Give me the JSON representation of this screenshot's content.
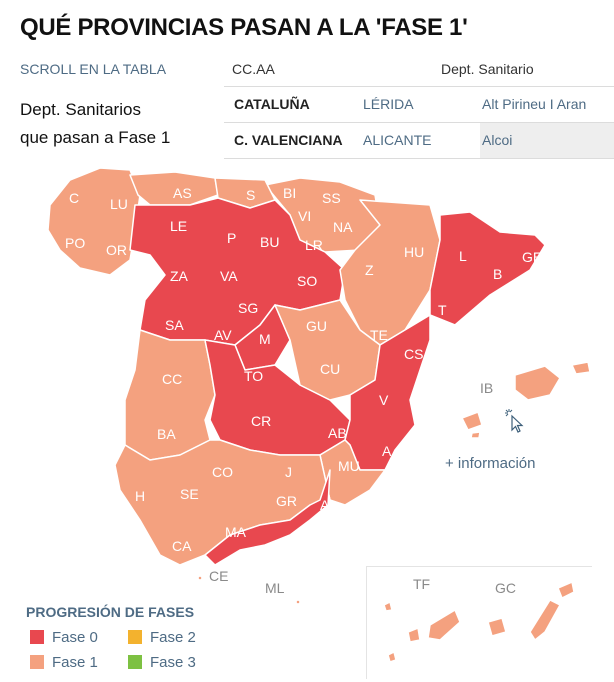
{
  "title": "QUÉ PROVINCIAS PASAN A LA 'FASE 1'",
  "scroll_label": "SCROLL EN LA TABLA",
  "table": {
    "headers": [
      "CC.AA",
      "Dept. Sanitario"
    ],
    "rows": [
      {
        "ccaa": "CATALUÑA",
        "provincia": "LÉRIDA",
        "dept": "Alt Pirineu I Aran"
      },
      {
        "ccaa": "C. VALENCIANA",
        "provincia": "ALICANTE",
        "dept": "Alcoi"
      }
    ]
  },
  "subtitle_line1": "Dept. Sanitarios",
  "subtitle_line2": "que pasan a Fase 1",
  "colors": {
    "fase0": "#e8484f",
    "fase1": "#f4a17f",
    "fase2": "#f3b22e",
    "fase3": "#7dc142"
  },
  "map_labels": {
    "C": "C",
    "LU": "LU",
    "AS": "AS",
    "S": "S",
    "BI": "BI",
    "SS": "SS",
    "PO": "PO",
    "OR": "OR",
    "LE": "LE",
    "P": "P",
    "BU": "BU",
    "LR": "LR",
    "NA": "NA",
    "VI": "VI",
    "HU": "HU",
    "L": "L",
    "GE": "GE",
    "B": "B",
    "ZA": "ZA",
    "VA": "VA",
    "SO": "SO",
    "Z": "Z",
    "T": "T",
    "SA": "SA",
    "SG": "SG",
    "AV": "AV",
    "M": "M",
    "GU": "GU",
    "TE": "TE",
    "CS": "CS",
    "CC": "CC",
    "TO": "TO",
    "CU": "CU",
    "V": "V",
    "IB": "IB",
    "CR": "CR",
    "AB": "AB",
    "BA": "BA",
    "A": "A",
    "CO": "CO",
    "J": "J",
    "MU": "MU",
    "H": "H",
    "SE": "SE",
    "GR": "GR",
    "AL": "AL",
    "MA": "MA",
    "CA": "CA",
    "CE": "CE",
    "ML": "ML",
    "TF": "TF",
    "GC": "GC"
  },
  "more_info": "+ información",
  "legend": {
    "title": "PROGRESIÓN DE FASES",
    "items": [
      {
        "label": "Fase 0",
        "color": "#e8484f"
      },
      {
        "label": "Fase 2",
        "color": "#f3b22e"
      },
      {
        "label": "Fase 1",
        "color": "#f4a17f"
      },
      {
        "label": "Fase 3",
        "color": "#7dc142"
      }
    ]
  }
}
